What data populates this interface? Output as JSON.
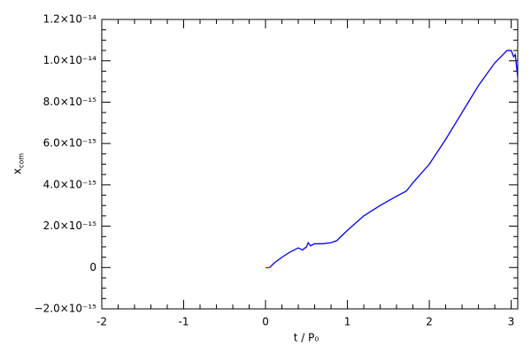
{
  "chart_data": {
    "type": "line",
    "xlabel": "t / P₀",
    "ylabel": {
      "main": "x",
      "sub": "com"
    },
    "xlim": [
      -2,
      3.08
    ],
    "ylim": [
      -2e-15,
      1.2e-14
    ],
    "xticks": [
      -2,
      -1,
      0,
      1,
      2,
      3
    ],
    "yticks": [
      {
        "value": -2e-15,
        "label": "−2.0×10⁻¹⁵"
      },
      {
        "value": 0,
        "label": "0"
      },
      {
        "value": 2e-15,
        "label": "2.0×10⁻¹⁵"
      },
      {
        "value": 4e-15,
        "label": "4.0×10⁻¹⁵"
      },
      {
        "value": 6e-15,
        "label": "6.0×10⁻¹⁵"
      },
      {
        "value": 8e-15,
        "label": "8.0×10⁻¹⁵"
      },
      {
        "value": 1e-14,
        "label": "1.0×10⁻¹⁴"
      },
      {
        "value": 1.2e-14,
        "label": "1.2×10⁻¹⁴"
      }
    ],
    "series": [
      {
        "color": "#0000ff",
        "x": [
          0.05,
          0.1,
          0.2,
          0.3,
          0.4,
          0.45,
          0.5,
          0.52,
          0.55,
          0.6,
          0.7,
          0.8,
          0.87,
          1.0,
          1.2,
          1.4,
          1.6,
          1.72,
          1.8,
          2.0,
          2.2,
          2.4,
          2.6,
          2.8,
          2.95,
          3.0,
          3.03,
          3.05,
          3.08
        ],
        "values": [
          0,
          2e-16,
          5e-16,
          7.5e-16,
          9.5e-16,
          8.5e-16,
          1e-15,
          1.2e-15,
          1.05e-15,
          1.15e-15,
          1.15e-15,
          1.2e-15,
          1.3e-15,
          1.8e-15,
          2.5e-15,
          3e-15,
          3.45e-15,
          3.7e-15,
          4.1e-15,
          5e-15,
          6.2e-15,
          7.5e-15,
          8.8e-15,
          9.9e-15,
          1.05e-14,
          1.05e-14,
          1.02e-14,
          1.03e-14,
          9.2e-15
        ]
      },
      {
        "color": "#ff0000",
        "x": [
          0,
          0.05
        ],
        "values": [
          -1e-17,
          0
        ]
      }
    ]
  }
}
